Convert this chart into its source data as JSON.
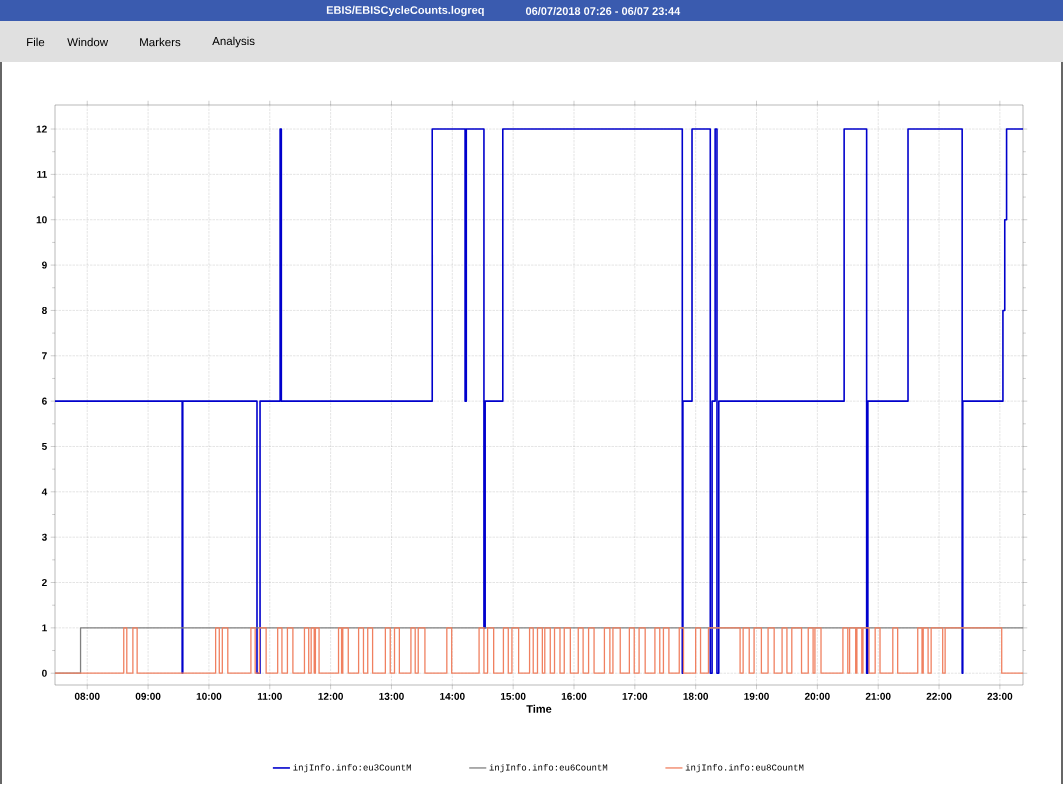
{
  "chart_data": {
    "type": "step",
    "title": "EBIS/EBISCycleCounts.logreq",
    "subtitle": "06/07/2018 07:26 - 06/07 23:44",
    "xlabel": "Time",
    "annotations": [
      "File",
      "Window",
      "Markers",
      "Analysis"
    ],
    "xlim": [
      7.47,
      23.38
    ],
    "ylim": [
      -0.26,
      12.53
    ],
    "xticks": [
      {
        "value": 8,
        "label": "08:00"
      },
      {
        "value": 9,
        "label": "09:00"
      },
      {
        "value": 10,
        "label": "10:00"
      },
      {
        "value": 11,
        "label": "11:00"
      },
      {
        "value": 12,
        "label": "12:00"
      },
      {
        "value": 13,
        "label": "13:00"
      },
      {
        "value": 14,
        "label": "14:00"
      },
      {
        "value": 15,
        "label": "15:00"
      },
      {
        "value": 16,
        "label": "16:00"
      },
      {
        "value": 17,
        "label": "17:00"
      },
      {
        "value": 18,
        "label": "18:00"
      },
      {
        "value": 19,
        "label": "19:00"
      },
      {
        "value": 20,
        "label": "20:00"
      },
      {
        "value": 21,
        "label": "21:00"
      },
      {
        "value": 22,
        "label": "22:00"
      },
      {
        "value": 23,
        "label": "23:00"
      }
    ],
    "yticks": [
      0,
      1,
      2,
      3,
      4,
      5,
      6,
      7,
      8,
      9,
      10,
      11,
      12
    ],
    "grid": true,
    "legend": "bottom",
    "series": [
      {
        "name": "injInfo.info:eu3CountM",
        "color": "#0000cc",
        "x": [
          7.47,
          9.56,
          9.57,
          10.79,
          10.84,
          11.17,
          11.19,
          13.67,
          14.21,
          14.23,
          14.52,
          14.54,
          14.83,
          17.78,
          17.79,
          17.94,
          18.24,
          18.27,
          18.32,
          18.35,
          18.38,
          20.44,
          20.81,
          20.83,
          21.49,
          22.38,
          22.39,
          23.05,
          23.08,
          23.11,
          23.38
        ],
        "values": [
          6,
          0,
          6,
          0,
          6,
          12,
          6,
          12,
          6,
          12,
          1,
          6,
          12,
          0,
          6,
          12,
          0,
          6,
          12,
          0,
          6,
          12,
          0,
          6,
          12,
          0,
          6,
          8,
          10,
          12,
          12
        ]
      },
      {
        "name": "injInfo.info:eu6CountM",
        "color": "#808080",
        "x": [
          7.47,
          7.89,
          23.38
        ],
        "values": [
          0,
          1,
          1
        ]
      },
      {
        "name": "injInfo.info:eu8CountM",
        "color": "#f08060",
        "x": [
          7.47,
          8.6,
          8.65,
          8.75,
          8.82,
          10.11,
          10.17,
          10.22,
          10.31,
          10.69,
          10.76,
          10.83,
          10.94,
          11.13,
          11.2,
          11.29,
          11.38,
          11.57,
          11.64,
          11.68,
          11.73,
          11.75,
          11.81,
          12.13,
          12.18,
          12.2,
          12.29,
          12.46,
          12.54,
          12.61,
          12.69,
          12.9,
          12.98,
          13.05,
          13.13,
          13.32,
          13.39,
          13.44,
          13.55,
          13.91,
          13.99,
          14.44,
          14.52,
          14.58,
          14.68,
          14.84,
          14.92,
          14.98,
          15.09,
          15.27,
          15.33,
          15.4,
          15.48,
          15.52,
          15.61,
          15.68,
          15.77,
          15.84,
          15.94,
          16.07,
          16.15,
          16.24,
          16.33,
          16.5,
          16.59,
          16.64,
          16.76,
          16.91,
          16.99,
          17.07,
          17.17,
          17.33,
          17.41,
          17.47,
          17.56,
          17.73,
          17.8,
          18.0,
          18.08,
          18.21,
          18.73,
          18.78,
          18.88,
          18.96,
          19.08,
          19.19,
          19.29,
          19.42,
          19.5,
          19.58,
          19.74,
          19.85,
          19.93,
          19.96,
          20.06,
          20.42,
          20.5,
          20.53,
          20.63,
          20.65,
          20.73,
          20.75,
          20.85,
          20.95,
          21.03,
          21.24,
          21.32,
          21.65,
          21.72,
          21.74,
          21.82,
          21.87,
          22.06,
          22.1,
          23.03,
          23.38
        ],
        "values": [
          0,
          1,
          0,
          1,
          0,
          1,
          0,
          1,
          0,
          1,
          0,
          1,
          0,
          1,
          0,
          1,
          0,
          1,
          0,
          1,
          0,
          1,
          0,
          1,
          0,
          1,
          0,
          1,
          0,
          1,
          0,
          1,
          0,
          1,
          0,
          1,
          0,
          1,
          0,
          1,
          0,
          1,
          0,
          1,
          0,
          1,
          0,
          1,
          0,
          1,
          0,
          1,
          0,
          1,
          0,
          1,
          0,
          1,
          0,
          1,
          0,
          1,
          0,
          1,
          0,
          1,
          0,
          1,
          0,
          1,
          0,
          1,
          0,
          1,
          0,
          1,
          0,
          1,
          0,
          1,
          0,
          1,
          0,
          1,
          0,
          1,
          0,
          1,
          0,
          1,
          0,
          1,
          0,
          1,
          0,
          1,
          0,
          1,
          0,
          1,
          0,
          1,
          0,
          1,
          0,
          1,
          0,
          1,
          0,
          1,
          0,
          1,
          0,
          1,
          0,
          0
        ]
      }
    ]
  }
}
